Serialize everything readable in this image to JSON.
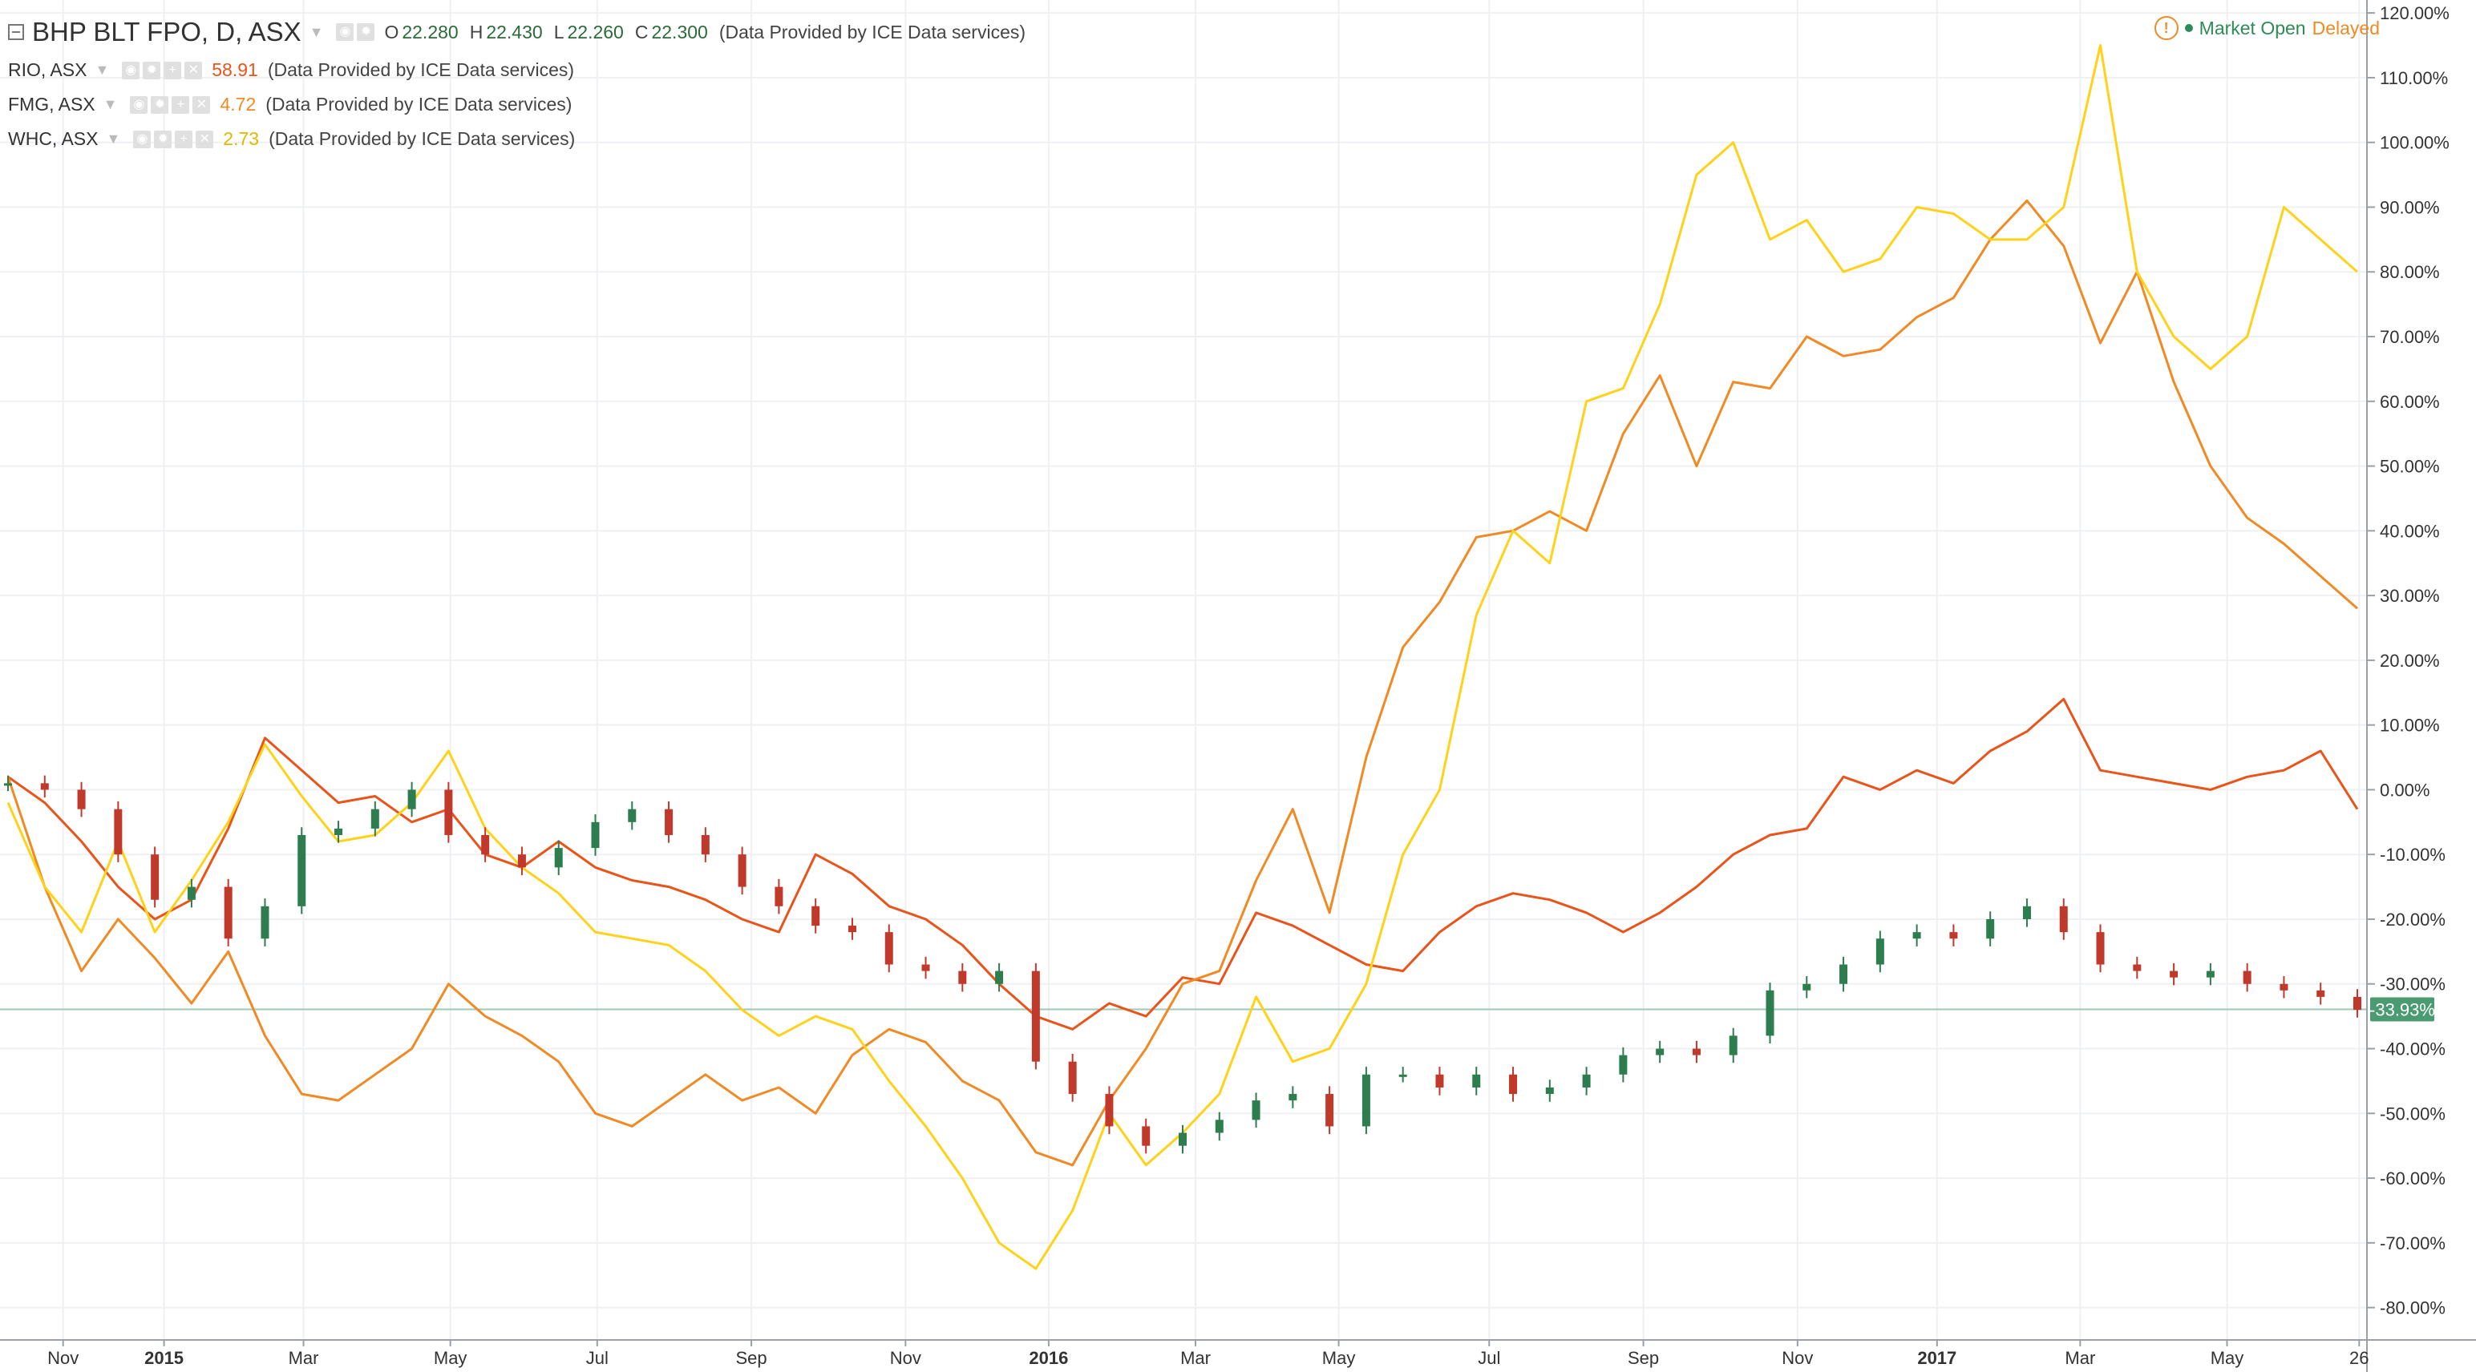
{
  "header": {
    "main_symbol": "BHP BLT FPO, D, ASX",
    "ohlc": [
      {
        "key": "O",
        "value": "22.280"
      },
      {
        "key": "H",
        "value": "22.430"
      },
      {
        "key": "L",
        "value": "22.260"
      },
      {
        "key": "C",
        "value": "22.300"
      }
    ],
    "provider": "(Data Provided by ICE Data services)"
  },
  "status": {
    "market_label": "Market Open",
    "delay_label": "Delayed"
  },
  "colors": {
    "bhp_up": "#2e7d4f",
    "bhp_down": "#c0392b",
    "rio": "#e8541a",
    "fmg": "#f08a24",
    "whc": "#ffd21a",
    "last_price": "#4a9a72"
  },
  "chart_data": {
    "type": "line",
    "title": "BHP BLT FPO, D, ASX",
    "y_unit": "%",
    "ylim": [
      -85,
      122
    ],
    "y_ticks": [
      "120.00%",
      "110.00%",
      "100.00%",
      "90.00%",
      "80.00%",
      "70.00%",
      "60.00%",
      "50.00%",
      "40.00%",
      "30.00%",
      "20.00%",
      "10.00%",
      "0.00%",
      "-10.00%",
      "-20.00%",
      "-30.00%",
      "-40.00%",
      "-50.00%",
      "-60.00%",
      "-70.00%",
      "-80.00%"
    ],
    "x_ticks": [
      {
        "label": "Nov",
        "t": 1.5,
        "bold": false
      },
      {
        "label": "2015",
        "t": 4.25,
        "bold": true
      },
      {
        "label": "Mar",
        "t": 8.05,
        "bold": false
      },
      {
        "label": "May",
        "t": 12.05,
        "bold": false
      },
      {
        "label": "Jul",
        "t": 16.05,
        "bold": false
      },
      {
        "label": "Sep",
        "t": 20.25,
        "bold": false
      },
      {
        "label": "Nov",
        "t": 24.45,
        "bold": false
      },
      {
        "label": "2016",
        "t": 28.35,
        "bold": true
      },
      {
        "label": "Mar",
        "t": 32.35,
        "bold": false
      },
      {
        "label": "May",
        "t": 36.25,
        "bold": false
      },
      {
        "label": "Jul",
        "t": 40.35,
        "bold": false
      },
      {
        "label": "Sep",
        "t": 44.55,
        "bold": false
      },
      {
        "label": "Nov",
        "t": 48.75,
        "bold": false
      },
      {
        "label": "2017",
        "t": 52.55,
        "bold": true
      },
      {
        "label": "Mar",
        "t": 56.45,
        "bold": false
      },
      {
        "label": "May",
        "t": 60.45,
        "bold": false
      },
      {
        "label": "26",
        "t": 64.05,
        "bold": false
      }
    ],
    "grid": true,
    "series": [
      {
        "name": "BHP BLT FPO",
        "kind": "candles",
        "color": "bhp",
        "values": [
          1,
          0,
          -3,
          -10,
          -17,
          -15,
          -23,
          -18,
          -7,
          -6,
          -3,
          0,
          -7,
          -10,
          -12,
          -9,
          -5,
          -3,
          -7,
          -10,
          -15,
          -18,
          -21,
          -22,
          -27,
          -28,
          -30,
          -28,
          -42,
          -47,
          -52,
          -55,
          -53,
          -51,
          -48,
          -47,
          -52,
          -44,
          -44,
          -46,
          -44,
          -47,
          -46,
          -44,
          -41,
          -40,
          -41,
          -38,
          -31,
          -30,
          -27,
          -23,
          -22,
          -23,
          -20,
          -18,
          -22,
          -27,
          -28,
          -29,
          -28,
          -30,
          -31,
          -32,
          -34
        ]
      },
      {
        "name": "RIO",
        "kind": "line",
        "color": "rio",
        "values": [
          2,
          -2,
          -8,
          -15,
          -20,
          -17,
          -6,
          8,
          3,
          -2,
          -1,
          -5,
          -3,
          -10,
          -12,
          -8,
          -12,
          -14,
          -15,
          -17,
          -20,
          -22,
          -10,
          -13,
          -18,
          -20,
          -24,
          -30,
          -35,
          -37,
          -33,
          -35,
          -29,
          -30,
          -19,
          -21,
          -24,
          -27,
          -28,
          -22,
          -18,
          -16,
          -17,
          -19,
          -22,
          -19,
          -15,
          -10,
          -7,
          -6,
          2,
          0,
          3,
          1,
          6,
          9,
          14,
          3,
          2,
          1,
          0,
          2,
          3,
          6,
          -3
        ]
      },
      {
        "name": "FMG",
        "kind": "line",
        "color": "fmg",
        "values": [
          2,
          -15,
          -28,
          -20,
          -26,
          -33,
          -25,
          -38,
          -47,
          -48,
          -44,
          -40,
          -30,
          -35,
          -38,
          -42,
          -50,
          -52,
          -48,
          -44,
          -48,
          -46,
          -50,
          -41,
          -37,
          -39,
          -45,
          -48,
          -56,
          -58,
          -48,
          -40,
          -30,
          -28,
          -14,
          -3,
          -19,
          5,
          22,
          29,
          39,
          40,
          43,
          40,
          55,
          64,
          50,
          63,
          62,
          70,
          67,
          68,
          73,
          76,
          85,
          91,
          84,
          69,
          80,
          63,
          50,
          42,
          38,
          33,
          28
        ]
      },
      {
        "name": "WHC",
        "kind": "line",
        "color": "whc",
        "values": [
          -2,
          -15,
          -22,
          -8,
          -22,
          -14,
          -5,
          7,
          -1,
          -8,
          -7,
          -2,
          6,
          -6,
          -12,
          -16,
          -22,
          -23,
          -24,
          -28,
          -34,
          -38,
          -35,
          -37,
          -45,
          -52,
          -60,
          -70,
          -74,
          -65,
          -50,
          -58,
          -53,
          -47,
          -32,
          -42,
          -40,
          -30,
          -10,
          0,
          27,
          40,
          35,
          60,
          62,
          75,
          95,
          100,
          85,
          88,
          80,
          82,
          90,
          89,
          85,
          85,
          90,
          115,
          80,
          70,
          65,
          70,
          90,
          85,
          80
        ]
      }
    ]
  },
  "legend": [
    {
      "symbol": "RIO, ASX",
      "value": "58.91",
      "color": "rio",
      "provider": "(Data Provided by ICE Data services)"
    },
    {
      "symbol": "FMG, ASX",
      "value": "4.72",
      "color": "fmg",
      "provider": "(Data Provided by ICE Data services)"
    },
    {
      "symbol": "WHC, ASX",
      "value": "2.73",
      "color": "whc",
      "provider": "(Data Provided by ICE Data services)"
    }
  ],
  "last_price_label": "-33.93%",
  "last_price_value": -33.93
}
